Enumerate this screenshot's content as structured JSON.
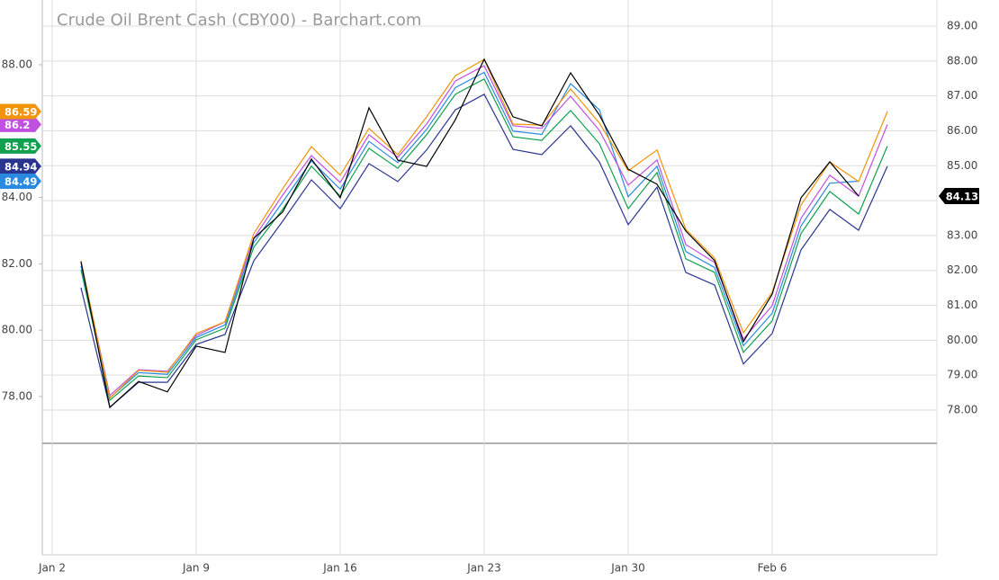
{
  "chart_data": {
    "type": "line",
    "title": "Crude Oil Brent Cash (CBY00) - Barchart.com",
    "categories": [
      "Jan 2",
      null,
      null,
      null,
      null,
      "Jan 9",
      null,
      null,
      null,
      null,
      "Jan 16",
      null,
      null,
      null,
      null,
      "Jan 23",
      null,
      null,
      null,
      null,
      "Jan 30",
      null,
      null,
      null,
      null,
      "Feb 6",
      null,
      null,
      null,
      null
    ],
    "series": [
      {
        "color": "#2a3590",
        "values": [
          null,
          81.28,
          77.67,
          78.43,
          78.43,
          79.57,
          79.87,
          82.09,
          83.28,
          84.53,
          83.66,
          85.02,
          84.48,
          85.43,
          86.64,
          87.11,
          85.45,
          85.29,
          86.16,
          85.07,
          83.18,
          84.31,
          81.74,
          81.36,
          78.98,
          79.9,
          82.42,
          83.64,
          83.01,
          84.94
        ]
      },
      {
        "color": "#10a050",
        "values": [
          null,
          81.82,
          77.89,
          78.62,
          78.57,
          79.71,
          80.06,
          82.5,
          83.64,
          84.94,
          84.04,
          85.48,
          84.88,
          85.89,
          87.11,
          87.57,
          85.83,
          85.72,
          86.62,
          85.62,
          83.66,
          84.75,
          82.15,
          81.74,
          79.33,
          80.28,
          82.91,
          84.18,
          83.5,
          85.55
        ]
      },
      {
        "color": "#2a8ae0",
        "values": [
          null,
          81.93,
          77.96,
          78.72,
          78.67,
          79.78,
          80.16,
          82.64,
          83.86,
          85.1,
          84.25,
          85.69,
          85.05,
          86.05,
          87.31,
          87.77,
          86.0,
          85.9,
          87.43,
          86.64,
          84.02,
          84.94,
          82.37,
          81.89,
          79.53,
          80.51,
          83.14,
          84.43,
          84.49,
          null
        ]
      },
      {
        "color": "#c050e0",
        "values": [
          null,
          82.04,
          78.03,
          78.81,
          78.76,
          79.84,
          80.25,
          82.77,
          84.07,
          85.26,
          84.45,
          85.89,
          85.21,
          86.21,
          87.51,
          87.97,
          86.16,
          86.08,
          87.05,
          86.02,
          84.37,
          85.13,
          82.58,
          82.04,
          79.73,
          80.74,
          83.37,
          84.67,
          84.04,
          86.2
        ]
      },
      {
        "color": "#f0940a",
        "values": [
          null,
          82.09,
          77.95,
          78.79,
          78.73,
          79.9,
          80.25,
          82.91,
          84.26,
          85.53,
          84.67,
          86.08,
          85.29,
          86.43,
          87.67,
          88.16,
          86.21,
          86.18,
          87.27,
          86.24,
          84.8,
          85.43,
          83.04,
          82.17,
          79.92,
          81.14,
          83.77,
          85.07,
          84.48,
          86.59
        ]
      },
      {
        "color": "#000000",
        "axis": "y2",
        "values": [
          null,
          82.25,
          78.08,
          78.82,
          78.52,
          79.83,
          79.65,
          82.92,
          83.67,
          85.19,
          84.08,
          86.66,
          85.16,
          84.98,
          86.32,
          88.05,
          86.4,
          86.14,
          87.66,
          86.45,
          84.9,
          84.47,
          83.13,
          82.28,
          79.96,
          81.32,
          84.08,
          85.11,
          84.13,
          null
        ]
      }
    ],
    "ylim": [
      76.59,
      89.95
    ],
    "yticks": [
      {
        "value": 78,
        "label": "78.00"
      },
      {
        "value": 80,
        "label": "80.00"
      },
      {
        "value": 82,
        "label": "82.00"
      },
      {
        "value": 84,
        "label": "84.00"
      },
      {
        "value": 88,
        "label": "88.00"
      }
    ],
    "y2lim": [
      77.047,
      89.747
    ],
    "y2ticks": [
      {
        "value": 78,
        "label": "78.00"
      },
      {
        "value": 79,
        "label": "79.00"
      },
      {
        "value": 80,
        "label": "80.00"
      },
      {
        "value": 81,
        "label": "81.00"
      },
      {
        "value": 82,
        "label": "82.00"
      },
      {
        "value": 83,
        "label": "83.00"
      },
      {
        "value": 84,
        "label": "84.00"
      },
      {
        "value": 85,
        "label": "85.00"
      },
      {
        "value": 86,
        "label": "86.00"
      },
      {
        "value": 87,
        "label": "87.00"
      },
      {
        "value": 88,
        "label": "88.00"
      },
      {
        "value": 89,
        "label": "89.00"
      }
    ],
    "grid": true
  }
}
